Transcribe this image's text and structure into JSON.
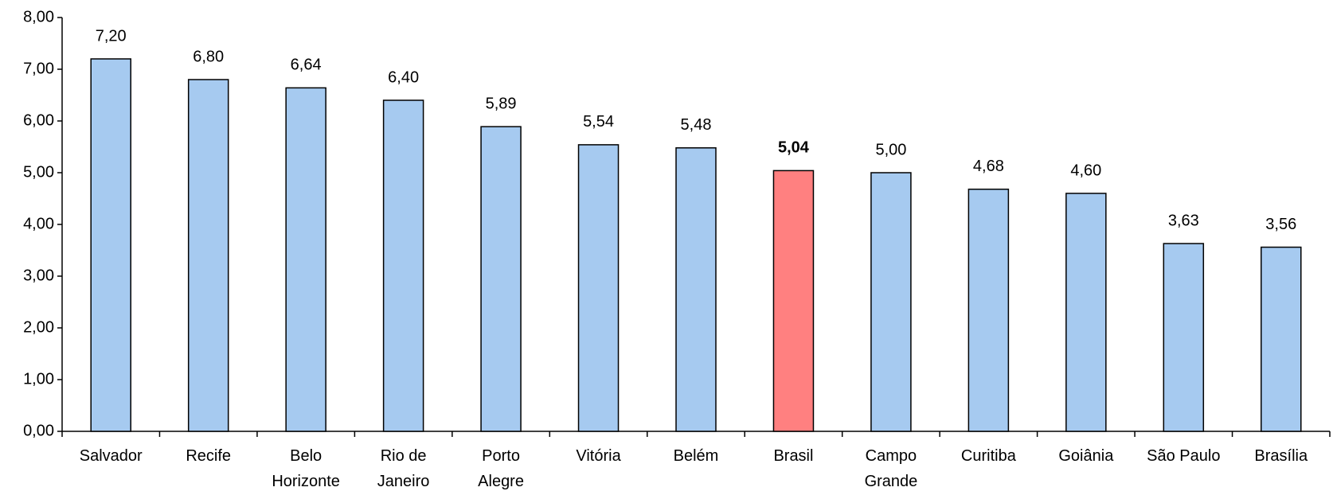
{
  "chart_data": {
    "type": "bar",
    "categories": [
      "Salvador",
      "Recife",
      "Belo Horizonte",
      "Rio de Janeiro",
      "Porto Alegre",
      "Vitória",
      "Belém",
      "Brasil",
      "Campo Grande",
      "Curitiba",
      "Goiânia",
      "São Paulo",
      "Brasília"
    ],
    "values": [
      7.2,
      6.8,
      6.64,
      6.4,
      5.89,
      5.54,
      5.48,
      5.04,
      5.0,
      4.68,
      4.6,
      3.63,
      3.56
    ],
    "value_labels": [
      "7,20",
      "6,80",
      "6,64",
      "6,40",
      "5,89",
      "5,54",
      "5,48",
      "5,04",
      "5,00",
      "4,68",
      "4,60",
      "3,63",
      "3,56"
    ],
    "color": "#a6caf0",
    "colors": [
      "#a6caf0",
      "#a6caf0",
      "#a6caf0",
      "#a6caf0",
      "#a6caf0",
      "#a6caf0",
      "#a6caf0",
      "#ff8080",
      "#a6caf0",
      "#a6caf0",
      "#a6caf0",
      "#a6caf0",
      "#a6caf0"
    ],
    "ylim": [
      0,
      8
    ],
    "yticks": [
      {
        "value": 0,
        "label": "0,00"
      },
      {
        "value": 1,
        "label": "1,00"
      },
      {
        "value": 2,
        "label": "2,00"
      },
      {
        "value": 3,
        "label": "3,00"
      },
      {
        "value": 4,
        "label": "4,00"
      },
      {
        "value": 5,
        "label": "5,00"
      },
      {
        "value": 6,
        "label": "6,00"
      },
      {
        "value": 7,
        "label": "7,00"
      },
      {
        "value": 8,
        "label": "8,00"
      }
    ],
    "grid": false
  }
}
